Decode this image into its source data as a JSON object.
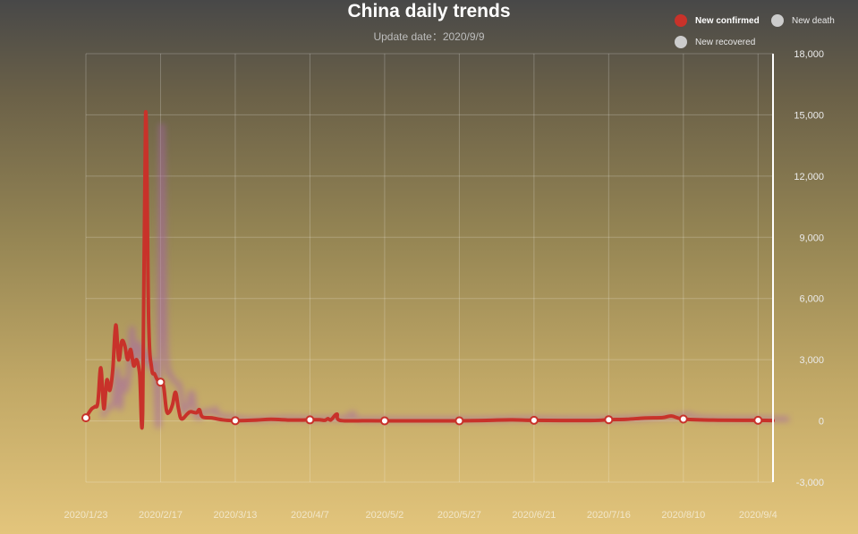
{
  "chart_data": {
    "type": "line",
    "title": "China daily trends",
    "subtitle": "Update date：2020/9/9",
    "x_tick_labels": [
      "2020/1/23",
      "2020/2/17",
      "2020/3/13",
      "2020/4/7",
      "2020/5/2",
      "2020/5/27",
      "2020/6/21",
      "2020/7/16",
      "2020/8/10",
      "2020/9/4"
    ],
    "x_start": "2020/1/23",
    "x_end": "2020/9/9",
    "ylim": [
      -3000,
      18000
    ],
    "y_ticks": [
      -3000,
      0,
      3000,
      6000,
      9000,
      12000,
      15000,
      18000
    ],
    "y_tick_labels": [
      "-3,000",
      "0",
      "3,000",
      "6,000",
      "9,000",
      "12,000",
      "15,000",
      "18,000"
    ],
    "grid": true,
    "legend_position": "top-right",
    "series": [
      {
        "name": "New confirmed",
        "color": "#c8322a",
        "selected": true,
        "points": [
          [
            "2020/1/23",
            150
          ],
          [
            "2020/1/24",
            400
          ],
          [
            "2020/1/25",
            600
          ],
          [
            "2020/1/26",
            700
          ],
          [
            "2020/1/27",
            900
          ],
          [
            "2020/1/28",
            2600
          ],
          [
            "2020/1/29",
            600
          ],
          [
            "2020/1/30",
            2000
          ],
          [
            "2020/1/31",
            1500
          ],
          [
            "2020/2/1",
            2500
          ],
          [
            "2020/2/2",
            4700
          ],
          [
            "2020/2/3",
            3000
          ],
          [
            "2020/2/4",
            3900
          ],
          [
            "2020/2/5",
            3700
          ],
          [
            "2020/2/6",
            3000
          ],
          [
            "2020/2/7",
            3500
          ],
          [
            "2020/2/8",
            2700
          ],
          [
            "2020/2/9",
            3000
          ],
          [
            "2020/2/10",
            2300
          ],
          [
            "2020/2/11",
            400
          ],
          [
            "2020/2/12",
            15100
          ],
          [
            "2020/2/13",
            5000
          ],
          [
            "2020/2/14",
            2600
          ],
          [
            "2020/2/15",
            2300
          ],
          [
            "2020/2/16",
            2000
          ],
          [
            "2020/2/17",
            1900
          ],
          [
            "2020/2/18",
            1700
          ],
          [
            "2020/2/19",
            500
          ],
          [
            "2020/2/20",
            450
          ],
          [
            "2020/2/21",
            800
          ],
          [
            "2020/2/22",
            1400
          ],
          [
            "2020/2/23",
            600
          ],
          [
            "2020/2/24",
            100
          ],
          [
            "2020/2/26",
            350
          ],
          [
            "2020/2/27",
            450
          ],
          [
            "2020/2/29",
            400
          ],
          [
            "2020/3/1",
            550
          ],
          [
            "2020/3/2",
            200
          ],
          [
            "2020/3/5",
            150
          ],
          [
            "2020/3/9",
            50
          ],
          [
            "2020/3/13",
            10
          ],
          [
            "2020/3/20",
            40
          ],
          [
            "2020/3/25",
            80
          ],
          [
            "2020/4/1",
            40
          ],
          [
            "2020/4/7",
            50
          ],
          [
            "2020/4/10",
            60
          ],
          [
            "2020/4/12",
            30
          ],
          [
            "2020/4/13",
            110
          ],
          [
            "2020/4/14",
            50
          ],
          [
            "2020/4/16",
            330
          ],
          [
            "2020/4/17",
            30
          ],
          [
            "2020/4/25",
            10
          ],
          [
            "2020/5/2",
            5
          ],
          [
            "2020/5/27",
            5
          ],
          [
            "2020/6/13",
            50
          ],
          [
            "2020/6/21",
            30
          ],
          [
            "2020/7/10",
            20
          ],
          [
            "2020/7/16",
            60
          ],
          [
            "2020/7/22",
            80
          ],
          [
            "2020/7/28",
            140
          ],
          [
            "2020/8/3",
            160
          ],
          [
            "2020/8/6",
            240
          ],
          [
            "2020/8/10",
            90
          ],
          [
            "2020/8/20",
            40
          ],
          [
            "2020/9/4",
            30
          ],
          [
            "2020/9/9",
            15
          ]
        ]
      },
      {
        "name": "New death",
        "color": "#cccccc",
        "selected": false,
        "points": []
      },
      {
        "name": "New recovered",
        "color": "#cccccc",
        "selected": false,
        "points": []
      }
    ]
  }
}
